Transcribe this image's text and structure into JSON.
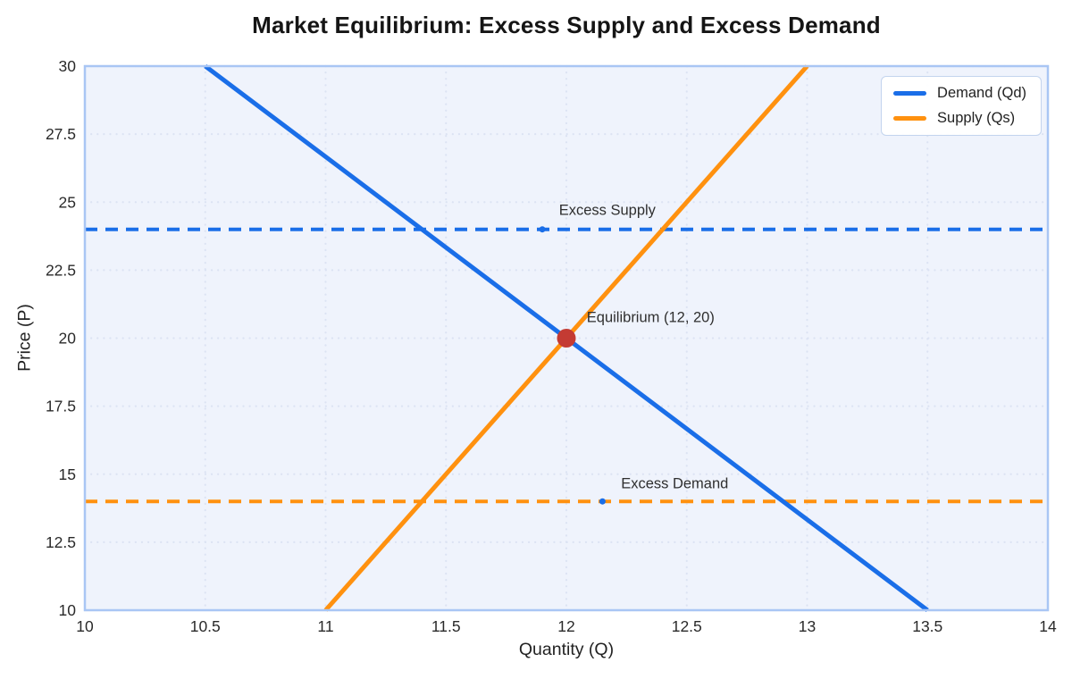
{
  "title": "Market Equilibrium: Excess Supply and Excess Demand",
  "chart_data": {
    "type": "line",
    "title": "Market Equilibrium: Excess Supply and Excess Demand",
    "xlabel": "Quantity (Q)",
    "ylabel": "Price (P)",
    "xlim": [
      10,
      14
    ],
    "ylim": [
      10,
      30
    ],
    "x_tick_values": [
      10,
      10.5,
      11,
      11.5,
      12,
      12.5,
      13,
      13.5,
      14
    ],
    "x_tick_labels": [
      "10",
      "10.5",
      "11",
      "11.5",
      "12",
      "12.5",
      "13",
      "13.5",
      "14"
    ],
    "y_tick_values": [
      10,
      12.5,
      15,
      17.5,
      20,
      22.5,
      25,
      27.5,
      30
    ],
    "y_tick_labels": [
      "10",
      "12.5",
      "15",
      "17.5",
      "20",
      "22.5",
      "25",
      "27.5",
      "30"
    ],
    "grid": {
      "on": true,
      "style": "dotted",
      "color": "#dce3f3"
    },
    "plot_background": "#eff3fc",
    "plot_border_color": "#a9c6f4",
    "series": [
      {
        "name": "Demand (Qd)",
        "color": "#1a6ee8",
        "line_style": "solid",
        "points": [
          [
            10.5,
            30
          ],
          [
            13.5,
            10
          ]
        ]
      },
      {
        "name": "Supply (Qs)",
        "color": "#ff910f",
        "line_style": "solid",
        "points": [
          [
            11,
            10
          ],
          [
            13,
            30
          ]
        ]
      }
    ],
    "reference_lines": [
      {
        "name": "excess-supply-price-line",
        "price": 24,
        "color": "#1a6ee8",
        "line_style": "dashed"
      },
      {
        "name": "excess-demand-price-line",
        "price": 14,
        "color": "#ff910f",
        "line_style": "dashed"
      }
    ],
    "midpoint_markers": [
      {
        "x": 11.9,
        "y": 24,
        "color": "#1a6ee8",
        "radius": 3.5
      },
      {
        "x": 12.15,
        "y": 14,
        "color": "#1a6ee8",
        "radius": 3.5
      }
    ],
    "equilibrium_point": {
      "x": 12,
      "y": 20,
      "color": "#c43b33",
      "radius": 10.5
    },
    "annotations": [
      {
        "text": "Excess Supply",
        "x": 12.17,
        "y": 24.68
      },
      {
        "text": "Excess Demand",
        "x": 12.45,
        "y": 14.62
      },
      {
        "text": "Equilibrium (12, 20)",
        "x": 12.35,
        "y": 20.75
      }
    ],
    "legend": {
      "position": "top-right",
      "entries": [
        "Demand (Qd)",
        "Supply (Qs)"
      ]
    }
  }
}
